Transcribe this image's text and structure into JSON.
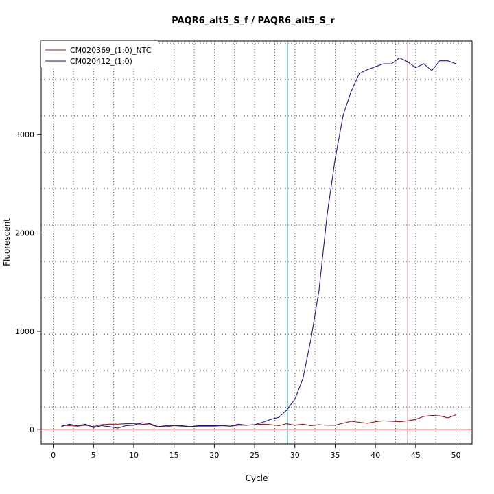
{
  "chart_data": {
    "type": "line",
    "title": "PAQR6_alt5_S_f / PAQR6_alt5_S_r",
    "xlabel": "Cycle",
    "ylabel": "Fluorescent",
    "xlim": [
      -1.5,
      52.0
    ],
    "ylim": [
      -145,
      3950
    ],
    "x_ticks": [
      0,
      5,
      10,
      15,
      20,
      25,
      30,
      35,
      40,
      45,
      50
    ],
    "y_ticks": [
      0,
      1000,
      2000,
      3000
    ],
    "grid_x": [
      0,
      2.5,
      5,
      7.5,
      10,
      12.5,
      15,
      17.5,
      20,
      22.5,
      25,
      27.5,
      30,
      32.5,
      35,
      37.5,
      40,
      42.5,
      45,
      47.5,
      50
    ],
    "grid_y": [
      230,
      600,
      970,
      1340,
      1710,
      2080,
      2450,
      2820,
      3190,
      3560,
      3930
    ],
    "grid": true,
    "legend": "top-left",
    "baseline": {
      "y": 0,
      "color": "#8B0000"
    },
    "vlines": [
      {
        "x": 29.1,
        "color": "#00E5EE"
      },
      {
        "x": 44.0,
        "color": "#B07070"
      }
    ],
    "series": [
      {
        "name": "CM020369_(1:0)_NTC",
        "color": "#8B1A1A",
        "x": [
          1,
          2,
          3,
          4,
          5,
          6,
          7,
          8,
          9,
          10,
          11,
          12,
          13,
          14,
          15,
          16,
          17,
          18,
          19,
          20,
          21,
          22,
          23,
          24,
          25,
          26,
          27,
          28,
          29,
          30,
          31,
          32,
          33,
          34,
          35,
          36,
          37,
          38,
          39,
          40,
          41,
          42,
          43,
          44,
          45,
          46,
          47,
          48,
          49,
          50
        ],
        "y": [
          45,
          40,
          35,
          45,
          30,
          50,
          55,
          55,
          60,
          60,
          55,
          50,
          30,
          30,
          40,
          35,
          30,
          35,
          35,
          35,
          40,
          35,
          45,
          45,
          50,
          55,
          50,
          40,
          60,
          45,
          55,
          40,
          50,
          45,
          45,
          65,
          85,
          75,
          65,
          80,
          90,
          85,
          80,
          90,
          105,
          135,
          145,
          140,
          120,
          150
        ]
      },
      {
        "name": "CM020412_(1:0)",
        "color": "#1A1A80",
        "x": [
          1,
          2,
          3,
          4,
          5,
          6,
          7,
          8,
          9,
          10,
          11,
          12,
          13,
          14,
          15,
          16,
          17,
          18,
          19,
          20,
          21,
          22,
          23,
          24,
          25,
          26,
          27,
          28,
          29,
          30,
          31,
          32,
          33,
          34,
          35,
          36,
          37,
          38,
          39,
          40,
          41,
          42,
          43,
          44,
          45,
          46,
          47,
          48,
          49,
          50
        ],
        "y": [
          30,
          55,
          40,
          55,
          20,
          40,
          30,
          15,
          40,
          45,
          70,
          60,
          30,
          40,
          45,
          40,
          30,
          40,
          40,
          40,
          40,
          35,
          55,
          45,
          50,
          75,
          105,
          125,
          200,
          310,
          520,
          920,
          1420,
          2180,
          2750,
          3200,
          3440,
          3620,
          3660,
          3690,
          3720,
          3720,
          3780,
          3740,
          3680,
          3720,
          3650,
          3750,
          3750,
          3720
        ]
      }
    ]
  }
}
